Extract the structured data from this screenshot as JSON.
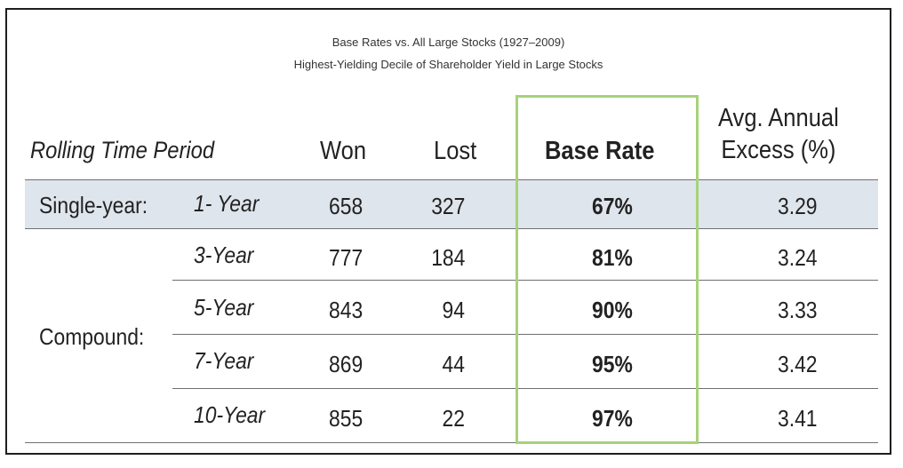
{
  "table": {
    "title": "Base Rates vs. All Large Stocks (1927–2009)",
    "subtitle": "Highest-Yielding Decile of Shareholder Yield in Large Stocks",
    "headers": {
      "period": "Rolling Time Period",
      "won": "Won",
      "lost": "Lost",
      "base_rate": "Base Rate",
      "excess_line1": "Avg. Annual",
      "excess_line2": "Excess (%)"
    },
    "group_single": "Single-year:",
    "group_compound": "Compound:",
    "rows": [
      {
        "period": "1- Year",
        "won": "658",
        "lost": "327",
        "base_rate": "67%",
        "excess": "3.29"
      },
      {
        "period": "3-Year",
        "won": "777",
        "lost": "184",
        "base_rate": "81%",
        "excess": "3.24"
      },
      {
        "period": "5-Year",
        "won": "843",
        "lost": "94",
        "base_rate": "90%",
        "excess": "3.33"
      },
      {
        "period": "7-Year",
        "won": "869",
        "lost": "44",
        "base_rate": "95%",
        "excess": "3.42"
      },
      {
        "period": "10-Year",
        "won": "855",
        "lost": "22",
        "base_rate": "97%",
        "excess": "3.41"
      }
    ],
    "colors": {
      "highlight_border": "#a6d37a",
      "shaded_row": "#dfe5ec"
    }
  }
}
